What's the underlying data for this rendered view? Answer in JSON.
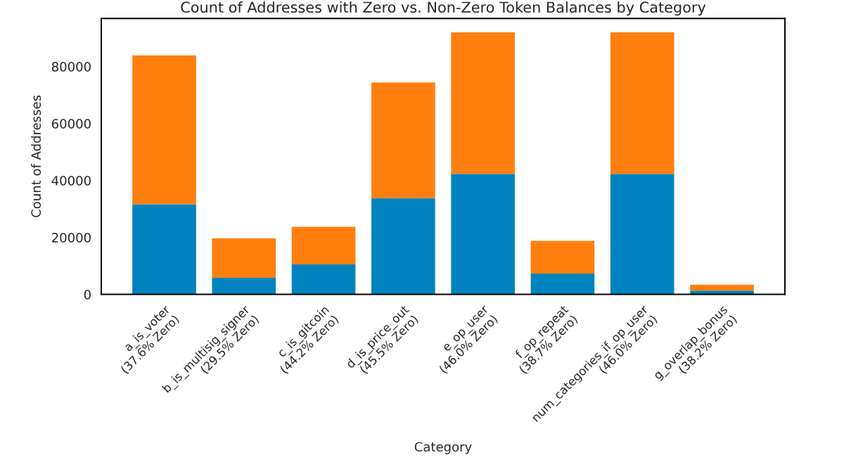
{
  "chart_data": {
    "type": "bar",
    "stacked": true,
    "title": "Count of Addresses with Zero vs. Non-Zero Token Balances by Category",
    "xlabel": "Category",
    "ylabel": "Count of Addresses",
    "categories": [
      "a_is_voter\n(37.6% Zero)",
      "b_is_multisig_signer\n(29.5% Zero)",
      "c_is_gitcoin\n(44.2% Zero)",
      "d_is_price_out\n(45.5% Zero)",
      "e_op_user\n(46.0% Zero)",
      "f_op_repeat\n(38.7% Zero)",
      "num_categories_if_op_user\n(46.0% Zero)",
      "g_overlap_bonus\n(38.2% Zero)"
    ],
    "series": [
      {
        "color": "#0083be",
        "values": [
          31600,
          5800,
          10500,
          33800,
          42300,
          7300,
          42300,
          1300
        ]
      },
      {
        "color": "#ff7f0e",
        "values": [
          52300,
          13900,
          13200,
          40600,
          49700,
          11500,
          49700,
          2100
        ]
      }
    ],
    "ylim": [
      0,
      96900
    ],
    "yticks": [
      0,
      20000,
      40000,
      60000,
      80000
    ],
    "grid": false,
    "legend": false
  }
}
